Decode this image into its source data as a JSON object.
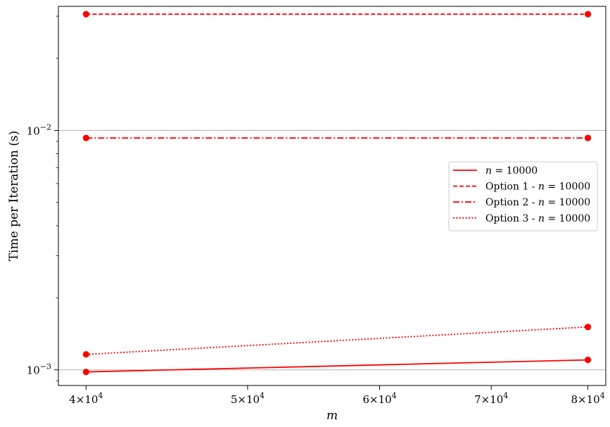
{
  "chart_data": {
    "type": "line",
    "xlabel": "m",
    "ylabel": "Time per Iteration (s)",
    "xscale": "log",
    "yscale": "log",
    "xlim": [
      38500,
      82000
    ],
    "ylim": [
      0.00086,
      0.033
    ],
    "grid": "horizontal major",
    "legend_position": "center-right",
    "x_ticks": [
      {
        "value": 40000,
        "base": "4",
        "exp": "4"
      },
      {
        "value": 50000,
        "base": "5",
        "exp": "4"
      },
      {
        "value": 60000,
        "base": "6",
        "exp": "4"
      },
      {
        "value": 70000,
        "base": "7",
        "exp": "4"
      },
      {
        "value": 80000,
        "base": "8",
        "exp": "4"
      }
    ],
    "y_ticks": [
      {
        "value": 0.001,
        "base": "10",
        "exp": "−3"
      },
      {
        "value": 0.01,
        "base": "10",
        "exp": "−2"
      }
    ],
    "x": [
      40000,
      80000
    ],
    "series": [
      {
        "name": "n = 10000",
        "legend_var": "n",
        "legend_val": "= 10000",
        "legend_prefix": "",
        "values": [
          0.00098,
          0.0011
        ],
        "color": "#ff0000",
        "dash": "solid"
      },
      {
        "name": "Option 1 - n = 10000",
        "legend_var": "n",
        "legend_val": "= 10000",
        "legend_prefix": "Option 1 - ",
        "values": [
          0.0306,
          0.0306
        ],
        "color": "#ff0000",
        "dash": "dashed"
      },
      {
        "name": "Option 2 - n = 10000",
        "legend_var": "n",
        "legend_val": "= 10000",
        "legend_prefix": "Option 2 - ",
        "values": [
          0.0093,
          0.0093
        ],
        "color": "#ff0000",
        "dash": "dashdot"
      },
      {
        "name": "Option 3 - n = 10000",
        "legend_var": "n",
        "legend_val": "= 10000",
        "legend_prefix": "Option 3 - ",
        "values": [
          0.00116,
          0.00151
        ],
        "color": "#ff0000",
        "dash": "dotted"
      }
    ]
  }
}
